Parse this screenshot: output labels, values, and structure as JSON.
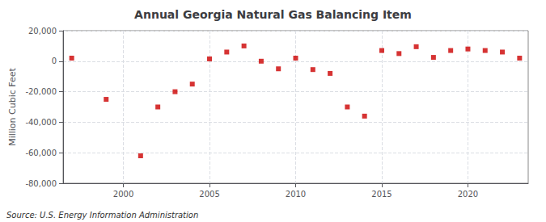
{
  "chart_data": {
    "type": "scatter",
    "title": "Annual Georgia Natural Gas Balancing Item",
    "ylabel": "Million Cubic Feet",
    "annotations": [
      "Source: U.S. Energy Information Administration"
    ],
    "x": [
      1997,
      1999,
      2001,
      2002,
      2003,
      2004,
      2005,
      2006,
      2007,
      2008,
      2009,
      2010,
      2011,
      2012,
      2013,
      2014,
      2015,
      2016,
      2017,
      2018,
      2019,
      2020,
      2021,
      2022,
      2023
    ],
    "values": [
      2000,
      -25000,
      -62000,
      -30000,
      -20000,
      -15000,
      1500,
      6000,
      10000,
      0,
      -5000,
      2000,
      -5500,
      -8000,
      -30000,
      -36000,
      7000,
      5000,
      9500,
      2500,
      7000,
      8000,
      7000,
      6000,
      2000
    ],
    "color": "#cc0000",
    "marker": "square",
    "xlim": [
      1996.5,
      2023.5
    ],
    "xticks": [
      2000,
      2005,
      2010,
      2015,
      2020
    ],
    "ylim": [
      -80000,
      20000
    ],
    "yticks": [
      {
        "value": -80000,
        "label": "-80,000"
      },
      {
        "value": -60000,
        "label": "-60,000"
      },
      {
        "value": -40000,
        "label": "-40,000"
      },
      {
        "value": -20000,
        "label": "-20,000"
      },
      0,
      {
        "value": 20000,
        "label": "20,000"
      }
    ],
    "grid": true
  }
}
